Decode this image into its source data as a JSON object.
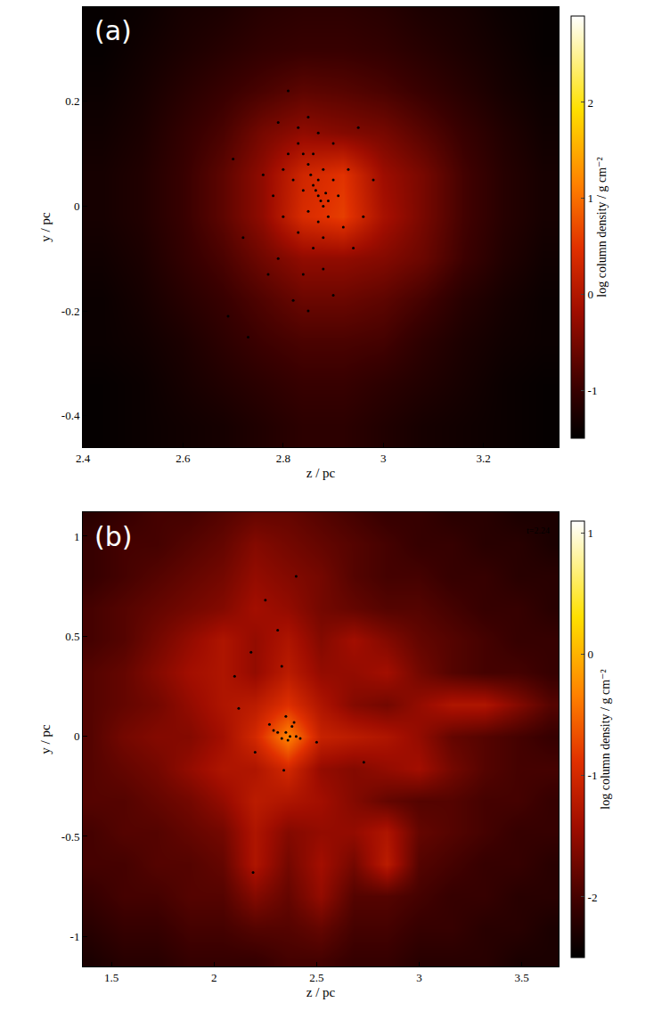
{
  "chart_data": [
    {
      "type": "heatmap",
      "label": "(a)",
      "x_label": "z / pc",
      "y_label": "y / pc",
      "colorbar_label": "log column density / g cm⁻²",
      "xlim": [
        2.4,
        3.35
      ],
      "ylim": [
        -0.46,
        0.38
      ],
      "xticks": [
        2.4,
        2.6,
        2.8,
        3,
        3.2
      ],
      "yticks": [
        -0.4,
        -0.2,
        0,
        0.2
      ],
      "colorbar_range": [
        -1.5,
        2.9
      ],
      "colorbar_ticks": [
        -1,
        0,
        1,
        2
      ],
      "x": [
        2.44,
        2.52,
        2.6,
        2.68,
        2.76,
        2.84,
        2.92,
        3.0,
        3.08,
        3.16,
        3.24,
        3.32
      ],
      "y": [
        -0.42,
        -0.34,
        -0.26,
        -0.18,
        -0.1,
        -0.02,
        0.06,
        0.14,
        0.22,
        0.3,
        0.38
      ],
      "cells": [
        [
          -1.45,
          -1.4,
          -1.35,
          -1.3,
          -1.2,
          -1.1,
          -1.1,
          -1.2,
          -1.3,
          -1.35,
          -1.4,
          -1.45
        ],
        [
          -1.45,
          -1.4,
          -1.3,
          -1.2,
          -1.1,
          -1.0,
          -1.0,
          -1.1,
          -1.2,
          -1.3,
          -1.4,
          -1.45
        ],
        [
          -1.4,
          -1.35,
          -1.25,
          -1.1,
          -0.95,
          -0.85,
          -0.85,
          -0.9,
          -1.1,
          -1.25,
          -1.35,
          -1.4
        ],
        [
          -1.4,
          -1.3,
          -1.15,
          -1.0,
          -0.8,
          -0.6,
          -0.6,
          -0.7,
          -0.9,
          -1.15,
          -1.3,
          -1.4
        ],
        [
          -1.35,
          -1.25,
          -1.05,
          -0.85,
          -0.55,
          -0.3,
          -0.3,
          -0.4,
          -0.6,
          -0.95,
          -1.2,
          -1.35
        ],
        [
          -1.3,
          -1.2,
          -1.0,
          -0.7,
          -0.3,
          0.4,
          0.6,
          -0.1,
          -0.5,
          -0.9,
          -1.15,
          -1.3
        ],
        [
          -1.3,
          -1.2,
          -1.0,
          -0.7,
          -0.3,
          0.3,
          0.5,
          -0.2,
          -0.5,
          -0.9,
          -1.15,
          -1.3
        ],
        [
          -1.35,
          -1.25,
          -1.05,
          -0.85,
          -0.5,
          -0.3,
          -0.4,
          -0.5,
          -0.75,
          -1.0,
          -1.2,
          -1.35
        ],
        [
          -1.4,
          -1.3,
          -1.15,
          -1.0,
          -0.85,
          -0.7,
          -0.75,
          -0.85,
          -1.0,
          -1.15,
          -1.3,
          -1.4
        ],
        [
          -1.45,
          -1.35,
          -1.25,
          -1.15,
          -1.05,
          -1.0,
          -1.0,
          -1.05,
          -1.15,
          -1.25,
          -1.35,
          -1.45
        ],
        [
          -1.45,
          -1.4,
          -1.3,
          -1.25,
          -1.15,
          -1.1,
          -1.1,
          -1.15,
          -1.25,
          -1.3,
          -1.4,
          -1.45
        ]
      ],
      "points": {
        "type": "scatter",
        "color": "#000000",
        "marker": "circle",
        "x": [
          2.87,
          2.875,
          2.88,
          2.865,
          2.86,
          2.89,
          2.885,
          2.87,
          2.855,
          2.85,
          2.84,
          2.83,
          2.86,
          2.88,
          2.9,
          2.91,
          2.89,
          2.87,
          2.85,
          2.84,
          2.82,
          2.8,
          2.81,
          2.83,
          2.85,
          2.87,
          2.9,
          2.93,
          2.95,
          2.92,
          2.88,
          2.86,
          2.83,
          2.8,
          2.78,
          2.76,
          2.79,
          2.84,
          2.88,
          2.94,
          2.96,
          2.7,
          2.72,
          2.73,
          2.77,
          2.82,
          2.85,
          2.9,
          2.98,
          2.79,
          2.81,
          2.69
        ],
        "y": [
          0.02,
          0.01,
          0.0,
          0.03,
          0.04,
          0.01,
          0.025,
          0.05,
          0.06,
          0.08,
          0.1,
          0.12,
          0.1,
          0.07,
          0.05,
          0.02,
          -0.02,
          -0.03,
          -0.01,
          0.03,
          0.05,
          0.07,
          0.1,
          0.15,
          0.17,
          0.14,
          0.12,
          0.07,
          0.15,
          -0.04,
          -0.06,
          -0.08,
          -0.05,
          -0.02,
          0.02,
          0.06,
          -0.1,
          -0.13,
          -0.12,
          -0.08,
          -0.02,
          0.09,
          -0.06,
          -0.25,
          -0.13,
          -0.18,
          -0.2,
          -0.17,
          0.05,
          0.16,
          0.22,
          -0.21
        ]
      }
    },
    {
      "type": "heatmap",
      "label": "(b)",
      "x_label": "z / pc",
      "y_label": "y / pc",
      "colorbar_label": "log column density / g cm⁻²",
      "annotations": [
        "t=2.24"
      ],
      "xlim": [
        1.36,
        3.68
      ],
      "ylim": [
        -1.15,
        1.12
      ],
      "xticks": [
        1.5,
        2,
        2.5,
        3,
        3.5
      ],
      "yticks": [
        -1,
        -0.5,
        0,
        0.5,
        1
      ],
      "colorbar_range": [
        -2.5,
        1.1
      ],
      "colorbar_ticks": [
        -2,
        -1,
        0,
        1
      ],
      "x": [
        1.4,
        1.56,
        1.72,
        1.88,
        2.04,
        2.2,
        2.36,
        2.52,
        2.68,
        2.84,
        3.0,
        3.16,
        3.32,
        3.48,
        3.64
      ],
      "y": [
        -1.12,
        -0.96,
        -0.8,
        -0.64,
        -0.48,
        -0.32,
        -0.16,
        0.0,
        0.16,
        0.32,
        0.48,
        0.64,
        0.8,
        0.96,
        1.12
      ],
      "cells": [
        [
          -2.3,
          -2.2,
          -2.2,
          -2.1,
          -2.1,
          -2.1,
          -2.0,
          -2.0,
          -2.1,
          -2.1,
          -2.2,
          -2.2,
          -2.2,
          -2.3,
          -2.3
        ],
        [
          -2.2,
          -2.1,
          -2.1,
          -2.0,
          -2.0,
          -1.9,
          -1.9,
          -1.8,
          -2.0,
          -2.0,
          -2.1,
          -2.1,
          -2.2,
          -2.2,
          -2.3
        ],
        [
          -2.1,
          -2.0,
          -2.0,
          -1.9,
          -1.9,
          -1.6,
          -1.8,
          -1.5,
          -1.9,
          -1.9,
          -2.0,
          -2.1,
          -2.1,
          -2.2,
          -2.2
        ],
        [
          -2.0,
          -2.0,
          -1.9,
          -1.9,
          -1.8,
          -1.3,
          -1.7,
          -1.4,
          -1.7,
          -1.2,
          -1.9,
          -2.0,
          -2.1,
          -2.1,
          -2.2
        ],
        [
          -2.0,
          -1.9,
          -1.9,
          -1.8,
          -1.7,
          -1.3,
          -1.6,
          -1.5,
          -1.5,
          -1.3,
          -1.8,
          -1.9,
          -2.0,
          -2.1,
          -2.1
        ],
        [
          -1.9,
          -1.9,
          -1.8,
          -1.7,
          -1.5,
          -1.2,
          -1.3,
          -1.4,
          -1.6,
          -1.8,
          -1.9,
          -1.9,
          -2.0,
          -2.0,
          -2.1
        ],
        [
          -1.9,
          -1.8,
          -1.7,
          -1.5,
          -1.3,
          -1.3,
          -1.0,
          -1.5,
          -1.6,
          -1.5,
          -1.4,
          -1.7,
          -1.9,
          -2.0,
          -2.0
        ],
        [
          -1.9,
          -1.7,
          -1.6,
          -1.6,
          -1.4,
          -1.0,
          -0.3,
          -1.1,
          -1.2,
          -1.3,
          -1.5,
          -1.8,
          -1.9,
          -2.0,
          -2.1
        ],
        [
          -1.9,
          -1.8,
          -1.7,
          -1.5,
          -1.3,
          -1.2,
          -0.9,
          -1.3,
          -1.6,
          -1.7,
          -1.5,
          -1.3,
          -1.3,
          -1.6,
          -1.9
        ],
        [
          -1.9,
          -1.8,
          -1.6,
          -1.4,
          -1.3,
          -1.5,
          -1.2,
          -1.5,
          -1.5,
          -1.4,
          -1.7,
          -1.9,
          -2.0,
          -2.0,
          -2.1
        ],
        [
          -2.0,
          -1.9,
          -1.7,
          -1.5,
          -1.3,
          -1.5,
          -1.3,
          -1.6,
          -1.4,
          -1.6,
          -1.8,
          -1.9,
          -2.0,
          -2.1,
          -2.1
        ],
        [
          -2.0,
          -1.9,
          -1.8,
          -1.7,
          -1.6,
          -1.4,
          -1.5,
          -1.7,
          -1.8,
          -1.9,
          -1.9,
          -2.0,
          -2.1,
          -2.1,
          -2.2
        ],
        [
          -2.1,
          -2.0,
          -1.9,
          -1.8,
          -1.7,
          -1.5,
          -1.6,
          -1.7,
          -1.9,
          -2.0,
          -2.0,
          -2.1,
          -2.1,
          -2.2,
          -2.2
        ],
        [
          -2.1,
          -2.0,
          -2.0,
          -1.9,
          -1.8,
          -1.6,
          -1.7,
          -1.8,
          -1.9,
          -2.0,
          -2.1,
          -2.1,
          -2.2,
          -2.2,
          -2.3
        ],
        [
          -2.2,
          -2.1,
          -2.0,
          -2.0,
          -1.9,
          -1.8,
          -1.8,
          -1.9,
          -2.0,
          -2.1,
          -2.1,
          -2.2,
          -2.2,
          -2.3,
          -2.3
        ]
      ],
      "points": {
        "type": "scatter",
        "color": "#000000",
        "marker": "circle",
        "x": [
          2.37,
          2.35,
          2.38,
          2.36,
          2.39,
          2.33,
          2.31,
          2.29,
          2.27,
          2.4,
          2.42,
          2.34,
          2.2,
          2.1,
          2.12,
          2.18,
          2.25,
          2.31,
          2.33,
          2.5,
          2.73,
          2.4,
          2.19,
          2.35
        ],
        "y": [
          0.0,
          0.02,
          0.05,
          -0.02,
          0.07,
          -0.01,
          0.02,
          0.03,
          0.06,
          0.0,
          -0.01,
          -0.17,
          -0.08,
          0.3,
          0.14,
          0.42,
          0.68,
          0.53,
          0.35,
          -0.03,
          -0.13,
          0.8,
          -0.68,
          0.1
        ]
      }
    }
  ]
}
